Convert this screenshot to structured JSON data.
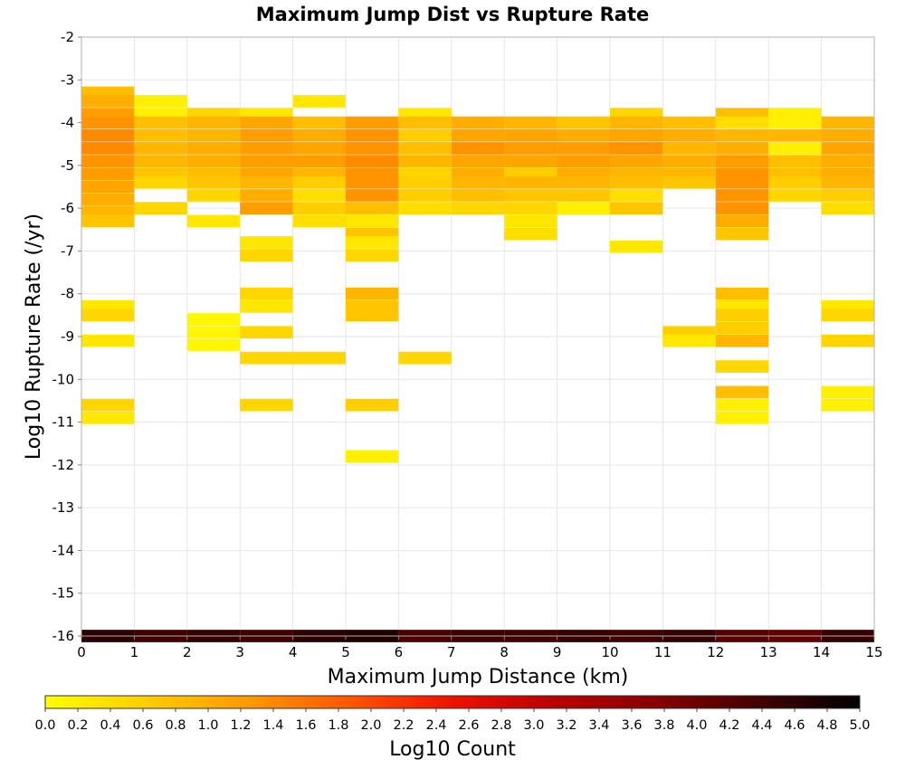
{
  "chart_data": {
    "type": "heatmap",
    "title": "Maximum Jump Dist vs Rupture Rate",
    "xlabel": "Maximum Jump Distance (km)",
    "ylabel": "Log10 Rupture Rate (/yr)",
    "xlim": [
      0,
      15
    ],
    "ylim": [
      -16,
      -2
    ],
    "x_ticks": [
      "0",
      "1",
      "2",
      "3",
      "4",
      "5",
      "6",
      "7",
      "8",
      "9",
      "10",
      "11",
      "12",
      "13",
      "14",
      "15"
    ],
    "y_ticks": [
      "-2",
      "-3",
      "-4",
      "-5",
      "-6",
      "-7",
      "-8",
      "-9",
      "-10",
      "-11",
      "-12",
      "-13",
      "-14",
      "-15",
      "-16"
    ],
    "grid": true,
    "bin_width_x": 1,
    "bin_height_y": 0.29,
    "colorbar": {
      "label": "Log10 Count",
      "min": 0.0,
      "max": 5.0,
      "ticks": [
        "0.0",
        "0.2",
        "0.4",
        "0.6",
        "0.8",
        "1.0",
        "1.2",
        "1.4",
        "1.6",
        "1.8",
        "2.0",
        "2.2",
        "2.4",
        "2.6",
        "2.8",
        "3.0",
        "3.2",
        "3.4",
        "3.6",
        "3.8",
        "4.0",
        "4.2",
        "4.4",
        "4.6",
        "4.8",
        "5.0"
      ],
      "colors": [
        "#ffff00",
        "#ffcc00",
        "#ff9900",
        "#ff5500",
        "#ee1100",
        "#bb0000",
        "#880000",
        "#440000",
        "#000000"
      ]
    },
    "cells": [
      [
        0,
        -3.3,
        0.8
      ],
      [
        0,
        -3.5,
        1.0
      ],
      [
        0,
        -3.8,
        1.2
      ],
      [
        0,
        -4.0,
        1.3
      ],
      [
        0,
        -4.3,
        1.4
      ],
      [
        0,
        -4.6,
        1.4
      ],
      [
        0,
        -4.9,
        1.3
      ],
      [
        0,
        -5.2,
        1.2
      ],
      [
        0,
        -5.5,
        1.1
      ],
      [
        0,
        -5.8,
        1.0
      ],
      [
        0,
        -6.1,
        0.9
      ],
      [
        0,
        -6.3,
        0.7
      ],
      [
        0,
        -8.3,
        0.3
      ],
      [
        0,
        -8.5,
        0.5
      ],
      [
        0,
        -9.1,
        0.3
      ],
      [
        0,
        -10.6,
        0.5
      ],
      [
        0,
        -10.9,
        0.3
      ],
      [
        0,
        -16.0,
        4.6
      ],
      [
        1,
        -3.5,
        0.2
      ],
      [
        1,
        -3.8,
        0.2
      ],
      [
        1,
        -4.0,
        0.8
      ],
      [
        1,
        -4.3,
        0.8
      ],
      [
        1,
        -4.6,
        0.9
      ],
      [
        1,
        -4.9,
        0.9
      ],
      [
        1,
        -5.2,
        0.7
      ],
      [
        1,
        -5.4,
        0.5
      ],
      [
        1,
        -6.0,
        0.5
      ],
      [
        1,
        -16.0,
        4.4
      ],
      [
        2,
        -3.8,
        0.5
      ],
      [
        2,
        -4.0,
        0.9
      ],
      [
        2,
        -4.3,
        0.9
      ],
      [
        2,
        -4.6,
        1.0
      ],
      [
        2,
        -4.9,
        1.0
      ],
      [
        2,
        -5.2,
        0.8
      ],
      [
        2,
        -5.4,
        0.7
      ],
      [
        2,
        -5.7,
        0.5
      ],
      [
        2,
        -6.3,
        0.3
      ],
      [
        2,
        -8.6,
        0.1
      ],
      [
        2,
        -8.9,
        0.1
      ],
      [
        2,
        -9.2,
        0.1
      ],
      [
        2,
        -16.0,
        4.5
      ],
      [
        3,
        -3.8,
        0.3
      ],
      [
        3,
        -4.0,
        1.1
      ],
      [
        3,
        -4.3,
        1.2
      ],
      [
        3,
        -4.6,
        1.2
      ],
      [
        3,
        -4.9,
        1.2
      ],
      [
        3,
        -5.2,
        1.1
      ],
      [
        3,
        -5.4,
        0.9
      ],
      [
        3,
        -5.7,
        1.0
      ],
      [
        3,
        -6.0,
        1.2
      ],
      [
        3,
        -6.8,
        0.3
      ],
      [
        3,
        -7.1,
        0.5
      ],
      [
        3,
        -8.0,
        0.5
      ],
      [
        3,
        -8.3,
        0.3
      ],
      [
        3,
        -8.9,
        0.5
      ],
      [
        3,
        -9.5,
        0.5
      ],
      [
        3,
        -10.6,
        0.5
      ],
      [
        3,
        -16.0,
        4.4
      ],
      [
        4,
        -3.5,
        0.3
      ],
      [
        4,
        -4.0,
        0.8
      ],
      [
        4,
        -4.3,
        1.0
      ],
      [
        4,
        -4.6,
        1.1
      ],
      [
        4,
        -4.9,
        1.2
      ],
      [
        4,
        -5.2,
        0.9
      ],
      [
        4,
        -5.4,
        0.6
      ],
      [
        4,
        -5.7,
        0.4
      ],
      [
        4,
        -6.0,
        0.6
      ],
      [
        4,
        -6.3,
        0.4
      ],
      [
        4,
        -9.5,
        0.5
      ],
      [
        4,
        -16.0,
        4.6
      ],
      [
        5,
        -4.0,
        1.2
      ],
      [
        5,
        -4.3,
        1.3
      ],
      [
        5,
        -4.6,
        1.3
      ],
      [
        5,
        -4.9,
        1.4
      ],
      [
        5,
        -5.2,
        1.3
      ],
      [
        5,
        -5.4,
        1.3
      ],
      [
        5,
        -5.7,
        1.3
      ],
      [
        5,
        -6.0,
        0.8
      ],
      [
        5,
        -6.3,
        0.3
      ],
      [
        5,
        -6.6,
        0.7
      ],
      [
        5,
        -6.8,
        0.3
      ],
      [
        5,
        -7.1,
        0.5
      ],
      [
        5,
        -8.0,
        0.9
      ],
      [
        5,
        -8.3,
        0.7
      ],
      [
        5,
        -8.5,
        0.7
      ],
      [
        5,
        -10.6,
        0.6
      ],
      [
        5,
        -11.8,
        0.2
      ],
      [
        5,
        -16.0,
        4.7
      ],
      [
        6,
        -3.8,
        0.3
      ],
      [
        6,
        -4.0,
        0.8
      ],
      [
        6,
        -4.3,
        0.6
      ],
      [
        6,
        -4.6,
        0.8
      ],
      [
        6,
        -4.9,
        0.9
      ],
      [
        6,
        -5.2,
        0.5
      ],
      [
        6,
        -5.4,
        0.6
      ],
      [
        6,
        -5.7,
        0.6
      ],
      [
        6,
        -6.0,
        0.4
      ],
      [
        6,
        -9.5,
        0.5
      ],
      [
        6,
        -16.0,
        4.3
      ],
      [
        7,
        -4.0,
        1.0
      ],
      [
        7,
        -4.3,
        1.1
      ],
      [
        7,
        -4.6,
        1.3
      ],
      [
        7,
        -4.9,
        1.1
      ],
      [
        7,
        -5.2,
        1.0
      ],
      [
        7,
        -5.4,
        0.9
      ],
      [
        7,
        -5.7,
        0.8
      ],
      [
        7,
        -6.0,
        0.5
      ],
      [
        7,
        -16.0,
        4.4
      ],
      [
        8,
        -4.0,
        0.9
      ],
      [
        8,
        -4.3,
        1.1
      ],
      [
        8,
        -4.6,
        1.2
      ],
      [
        8,
        -4.9,
        1.1
      ],
      [
        8,
        -5.2,
        0.6
      ],
      [
        8,
        -5.4,
        0.9
      ],
      [
        8,
        -5.7,
        0.7
      ],
      [
        8,
        -6.0,
        0.5
      ],
      [
        8,
        -6.3,
        0.3
      ],
      [
        8,
        -6.6,
        0.4
      ],
      [
        8,
        -16.0,
        4.4
      ],
      [
        9,
        -4.0,
        0.7
      ],
      [
        9,
        -4.3,
        1.0
      ],
      [
        9,
        -4.6,
        1.2
      ],
      [
        9,
        -4.9,
        1.2
      ],
      [
        9,
        -5.2,
        1.0
      ],
      [
        9,
        -5.4,
        0.9
      ],
      [
        9,
        -5.7,
        0.7
      ],
      [
        9,
        -6.0,
        0.2
      ],
      [
        9,
        -16.0,
        4.5
      ],
      [
        10,
        -3.8,
        0.5
      ],
      [
        10,
        -4.0,
        0.9
      ],
      [
        10,
        -4.3,
        1.1
      ],
      [
        10,
        -4.6,
        1.3
      ],
      [
        10,
        -4.9,
        1.1
      ],
      [
        10,
        -5.2,
        0.9
      ],
      [
        10,
        -5.4,
        0.8
      ],
      [
        10,
        -5.7,
        0.4
      ],
      [
        10,
        -6.0,
        0.7
      ],
      [
        10,
        -6.9,
        0.3
      ],
      [
        10,
        -16.0,
        4.4
      ],
      [
        11,
        -4.0,
        0.8
      ],
      [
        11,
        -4.3,
        1.0
      ],
      [
        11,
        -4.6,
        0.9
      ],
      [
        11,
        -4.9,
        1.0
      ],
      [
        11,
        -5.2,
        0.9
      ],
      [
        11,
        -5.4,
        0.7
      ],
      [
        11,
        -8.9,
        0.6
      ],
      [
        11,
        -9.1,
        0.3
      ],
      [
        11,
        -16.0,
        4.5
      ],
      [
        12,
        -3.8,
        0.8
      ],
      [
        12,
        -4.0,
        0.4
      ],
      [
        12,
        -4.3,
        0.9
      ],
      [
        12,
        -4.6,
        1.0
      ],
      [
        12,
        -4.9,
        1.2
      ],
      [
        12,
        -5.2,
        1.3
      ],
      [
        12,
        -5.4,
        1.3
      ],
      [
        12,
        -5.7,
        1.3
      ],
      [
        12,
        -6.0,
        1.3
      ],
      [
        12,
        -6.3,
        1.0
      ],
      [
        12,
        -6.6,
        0.7
      ],
      [
        12,
        -8.0,
        0.8
      ],
      [
        12,
        -8.3,
        0.3
      ],
      [
        12,
        -8.5,
        0.6
      ],
      [
        12,
        -8.8,
        0.6
      ],
      [
        12,
        -9.1,
        0.9
      ],
      [
        12,
        -9.7,
        0.5
      ],
      [
        12,
        -10.3,
        0.8
      ],
      [
        12,
        -10.6,
        0.2
      ],
      [
        12,
        -10.9,
        0.2
      ],
      [
        12,
        -16.0,
        4.2
      ],
      [
        13,
        -3.8,
        0.2
      ],
      [
        13,
        -4.0,
        0.2
      ],
      [
        13,
        -4.3,
        0.9
      ],
      [
        13,
        -4.6,
        0.2
      ],
      [
        13,
        -4.9,
        0.8
      ],
      [
        13,
        -5.2,
        0.8
      ],
      [
        13,
        -5.4,
        0.6
      ],
      [
        13,
        -5.7,
        0.5
      ],
      [
        13,
        -16.0,
        4.1
      ],
      [
        14,
        -4.0,
        0.9
      ],
      [
        14,
        -4.3,
        1.0
      ],
      [
        14,
        -4.6,
        1.1
      ],
      [
        14,
        -4.9,
        1.0
      ],
      [
        14,
        -5.2,
        1.0
      ],
      [
        14,
        -5.4,
        0.9
      ],
      [
        14,
        -5.7,
        0.6
      ],
      [
        14,
        -6.0,
        0.4
      ],
      [
        14,
        -8.3,
        0.3
      ],
      [
        14,
        -8.5,
        0.5
      ],
      [
        14,
        -9.1,
        0.5
      ],
      [
        14,
        -10.3,
        0.2
      ],
      [
        14,
        -10.6,
        0.2
      ],
      [
        14,
        -16.0,
        4.5
      ]
    ]
  }
}
